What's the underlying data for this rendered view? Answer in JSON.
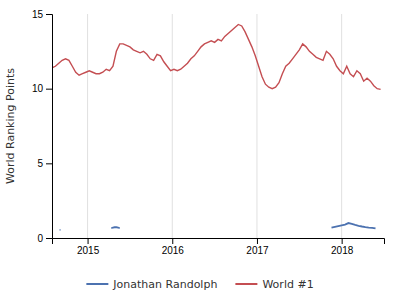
{
  "chart_data": {
    "type": "line",
    "ylabel": "World Ranking Points",
    "xlim": [
      2014.58,
      2018.5
    ],
    "ylim": [
      0,
      15
    ],
    "xticks": [
      2015,
      2016,
      2017,
      2018
    ],
    "yticks": [
      0,
      5,
      10,
      15
    ],
    "grid": "x",
    "legend": "bottom",
    "series": [
      {
        "name": "Jonathan Randolph",
        "color": "#4c72b0",
        "x": [
          2014.67,
          2014.68,
          null,
          2015.28,
          2015.3,
          2015.32,
          2015.34,
          2015.36,
          2015.38,
          null,
          2017.88,
          2017.92,
          2017.96,
          2018.0,
          2018.04,
          2018.08,
          2018.12,
          2018.16,
          2018.2,
          2018.24,
          2018.28,
          2018.32,
          2018.36,
          2018.4
        ],
        "values": [
          0.55,
          0.55,
          null,
          0.65,
          0.7,
          0.72,
          0.73,
          0.7,
          0.65,
          null,
          0.7,
          0.75,
          0.8,
          0.85,
          0.9,
          1.0,
          0.95,
          0.88,
          0.82,
          0.77,
          0.73,
          0.7,
          0.68,
          0.65
        ]
      },
      {
        "name": "World #1",
        "color": "#c44e52",
        "x": [
          2014.58,
          2014.62,
          2014.66,
          2014.7,
          2014.74,
          2014.78,
          2014.82,
          2014.86,
          2014.9,
          2014.94,
          2014.98,
          2015.02,
          2015.06,
          2015.1,
          2015.14,
          2015.18,
          2015.22,
          2015.26,
          2015.3,
          2015.34,
          2015.38,
          2015.42,
          2015.46,
          2015.5,
          2015.54,
          2015.58,
          2015.62,
          2015.66,
          2015.7,
          2015.74,
          2015.78,
          2015.82,
          2015.86,
          2015.9,
          2015.94,
          2015.98,
          2016.02,
          2016.06,
          2016.1,
          2016.14,
          2016.18,
          2016.22,
          2016.26,
          2016.3,
          2016.34,
          2016.38,
          2016.42,
          2016.46,
          2016.5,
          2016.54,
          2016.58,
          2016.62,
          2016.66,
          2016.7,
          2016.74,
          2016.78,
          2016.82,
          2016.86,
          2016.9,
          2016.94,
          2016.98,
          2017.02,
          2017.06,
          2017.1,
          2017.14,
          2017.18,
          2017.22,
          2017.26,
          2017.3,
          2017.34,
          2017.38,
          2017.42,
          2017.46,
          2017.5,
          2017.54,
          2017.58,
          2017.62,
          2017.66,
          2017.7,
          2017.74,
          2017.78,
          2017.82,
          2017.86,
          2017.9,
          2017.94,
          2017.98,
          2018.02,
          2018.06,
          2018.1,
          2018.14,
          2018.18,
          2018.22,
          2018.26,
          2018.3,
          2018.34,
          2018.38,
          2018.42,
          2018.46
        ],
        "values": [
          11.4,
          11.5,
          11.7,
          11.9,
          12.0,
          11.9,
          11.5,
          11.1,
          10.9,
          11.0,
          11.1,
          11.2,
          11.1,
          11.0,
          11.0,
          11.1,
          11.3,
          11.2,
          11.5,
          12.5,
          13.0,
          13.0,
          12.9,
          12.8,
          12.6,
          12.5,
          12.4,
          12.5,
          12.3,
          12.0,
          11.9,
          12.3,
          12.2,
          11.8,
          11.5,
          11.2,
          11.3,
          11.2,
          11.3,
          11.5,
          11.7,
          12.0,
          12.2,
          12.5,
          12.8,
          13.0,
          13.1,
          13.2,
          13.1,
          13.3,
          13.2,
          13.5,
          13.7,
          13.9,
          14.1,
          14.3,
          14.2,
          13.8,
          13.3,
          12.8,
          12.2,
          11.5,
          10.8,
          10.3,
          10.1,
          10.0,
          10.1,
          10.4,
          11.0,
          11.5,
          11.7,
          12.0,
          12.3,
          12.6,
          13.0,
          12.8,
          12.5,
          12.3,
          12.1,
          12.0,
          11.9,
          12.5,
          12.3,
          12.0,
          11.5,
          11.2,
          11.0,
          11.5,
          11.0,
          10.8,
          11.2,
          11.0,
          10.5,
          10.7,
          10.5,
          10.2,
          10.0,
          9.95
        ]
      }
    ]
  }
}
